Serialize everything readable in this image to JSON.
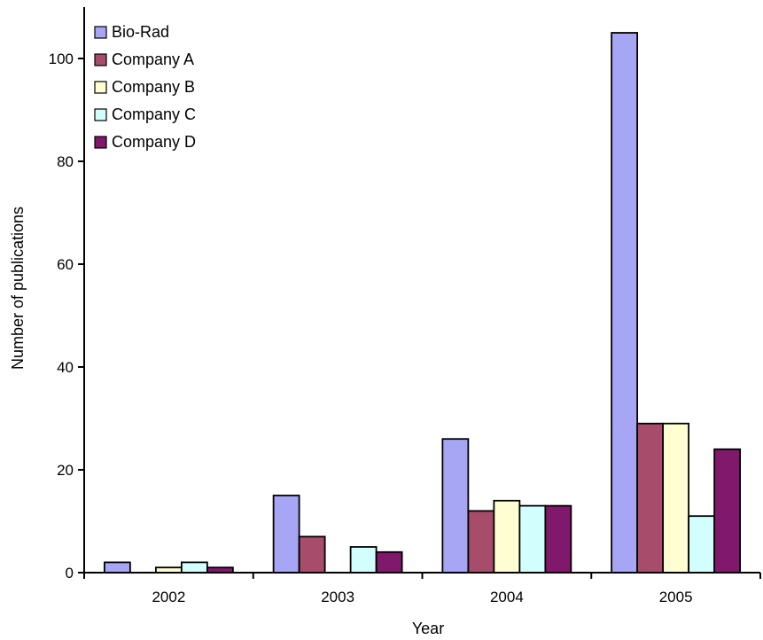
{
  "chart_data": {
    "type": "bar",
    "title": "",
    "xlabel": "Year",
    "ylabel": "Number of publications",
    "categories": [
      "2002",
      "2003",
      "2004",
      "2005"
    ],
    "ylim": [
      0,
      110
    ],
    "yticks": [
      0,
      20,
      40,
      60,
      80,
      100
    ],
    "legend_position": "top-left",
    "grid": false,
    "series": [
      {
        "name": "Bio-Rad",
        "color": "#a6a6f4",
        "values": [
          2,
          15,
          26,
          105
        ]
      },
      {
        "name": "Company A",
        "color": "#a84c6c",
        "values": [
          0,
          7,
          12,
          29
        ]
      },
      {
        "name": "Company B",
        "color": "#fefed2",
        "values": [
          1,
          0,
          14,
          29
        ]
      },
      {
        "name": "Company C",
        "color": "#d2fefe",
        "values": [
          2,
          5,
          13,
          11
        ]
      },
      {
        "name": "Company D",
        "color": "#80186c",
        "values": [
          1,
          4,
          13,
          24
        ]
      }
    ]
  }
}
